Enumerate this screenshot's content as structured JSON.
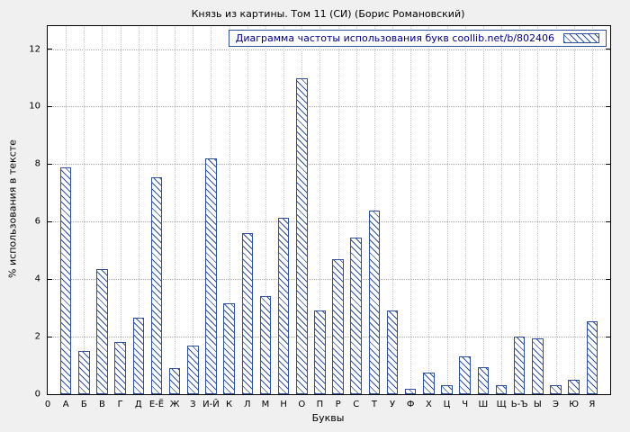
{
  "chart_data": {
    "type": "bar",
    "title": "Князь из картины. Том 11 (СИ) (Борис Романовский)",
    "legend": "Диаграмма частоты использования букв coollib.net/b/802406",
    "xlabel": "Буквы",
    "ylabel": "% использования в тексте",
    "x_origin_label": "0",
    "categories": [
      "А",
      "Б",
      "В",
      "Г",
      "Д",
      "Е-Ё",
      "Ж",
      "З",
      "И-Й",
      "К",
      "Л",
      "М",
      "Н",
      "О",
      "П",
      "Р",
      "С",
      "Т",
      "У",
      "Ф",
      "Х",
      "Ц",
      "Ч",
      "Ш",
      "Щ",
      "Ь-Ъ",
      "Ы",
      "Э",
      "Ю",
      "Я"
    ],
    "values": [
      7.9,
      1.5,
      4.35,
      1.8,
      2.65,
      7.55,
      0.9,
      1.7,
      8.2,
      3.15,
      5.6,
      3.4,
      6.15,
      11.0,
      2.9,
      4.7,
      5.45,
      6.4,
      2.9,
      0.2,
      0.75,
      0.3,
      1.3,
      0.95,
      0.3,
      2.0,
      1.95,
      0.3,
      0.5,
      2.55
    ],
    "yticks": [
      0,
      2,
      4,
      6,
      8,
      10,
      12
    ],
    "ylim": [
      0,
      12.8
    ],
    "grid": "dotted",
    "legend_position": "top-right",
    "colors": {
      "bar_stroke": "#30519c",
      "hatch": "#30519c",
      "axis": "#000000",
      "figure_background": "#f0f0f0",
      "plot_background": "#ffffff"
    }
  }
}
